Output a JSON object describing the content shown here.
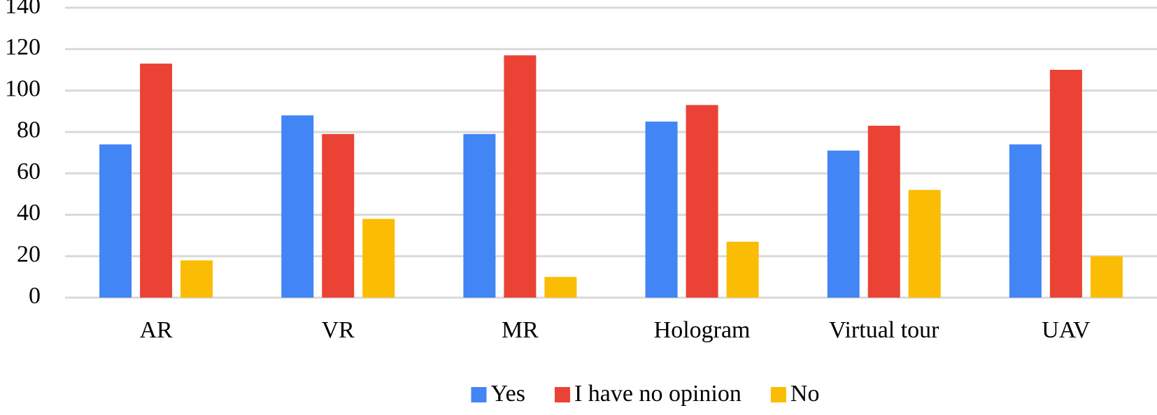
{
  "chart_data": {
    "type": "bar",
    "categories": [
      "AR",
      "VR",
      "MR",
      "Hologram",
      "Virtual tour",
      "UAV"
    ],
    "series": [
      {
        "name": "Yes",
        "color": "#4285f4",
        "values": [
          74,
          88,
          79,
          85,
          71,
          74
        ]
      },
      {
        "name": "I have no opinion",
        "color": "#ea4335",
        "values": [
          113,
          79,
          117,
          93,
          83,
          110
        ]
      },
      {
        "name": "No",
        "color": "#fbbc04",
        "values": [
          18,
          38,
          10,
          27,
          52,
          20
        ]
      }
    ],
    "ylim": [
      0,
      140
    ],
    "yticks": [
      0,
      20,
      40,
      60,
      80,
      100,
      120,
      140
    ],
    "grid": true,
    "legend": "bottom"
  }
}
